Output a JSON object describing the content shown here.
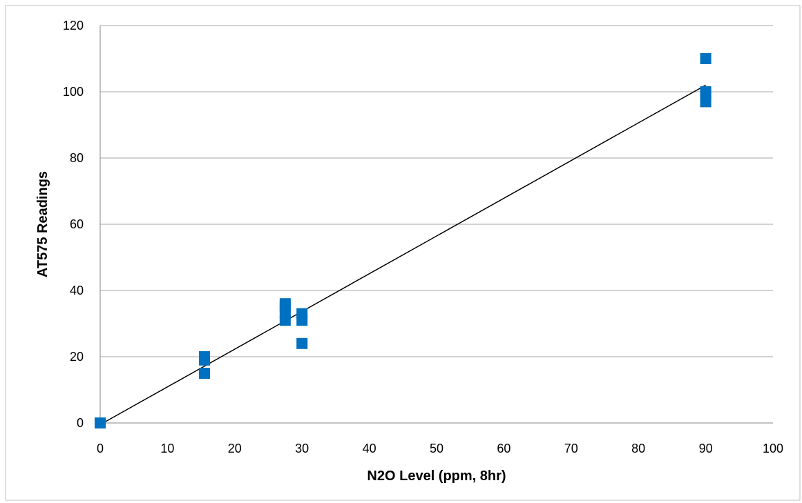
{
  "chart_data": {
    "type": "scatter",
    "title": "",
    "xlabel": "N2O Level (ppm, 8hr)",
    "ylabel": "AT575 Readings",
    "xlim": [
      0,
      100
    ],
    "ylim": [
      0,
      120
    ],
    "xticks": [
      0,
      10,
      20,
      30,
      40,
      50,
      60,
      70,
      80,
      90,
      100
    ],
    "yticks": [
      0,
      20,
      40,
      60,
      80,
      100,
      120
    ],
    "grid": "horizontal",
    "legend": "none",
    "colors": {
      "marker": "#0070C0",
      "trendline": "#000000",
      "gridline": "#a6a6a6"
    },
    "series": [
      {
        "points": [
          {
            "x": 0,
            "y": 0
          },
          {
            "x": 15.5,
            "y": 15
          },
          {
            "x": 15.5,
            "y": 19
          },
          {
            "x": 15.5,
            "y": 20
          },
          {
            "x": 27.5,
            "y": 31
          },
          {
            "x": 27.5,
            "y": 33
          },
          {
            "x": 27.5,
            "y": 35
          },
          {
            "x": 27.5,
            "y": 36
          },
          {
            "x": 30,
            "y": 24
          },
          {
            "x": 30,
            "y": 31
          },
          {
            "x": 30,
            "y": 33
          },
          {
            "x": 90,
            "y": 97
          },
          {
            "x": 90,
            "y": 99
          },
          {
            "x": 90,
            "y": 100
          },
          {
            "x": 90,
            "y": 110
          }
        ]
      }
    ],
    "trendline": {
      "type": "linear",
      "from": {
        "x": 0,
        "y": -0.5
      },
      "to": {
        "x": 90,
        "y": 102
      }
    }
  }
}
